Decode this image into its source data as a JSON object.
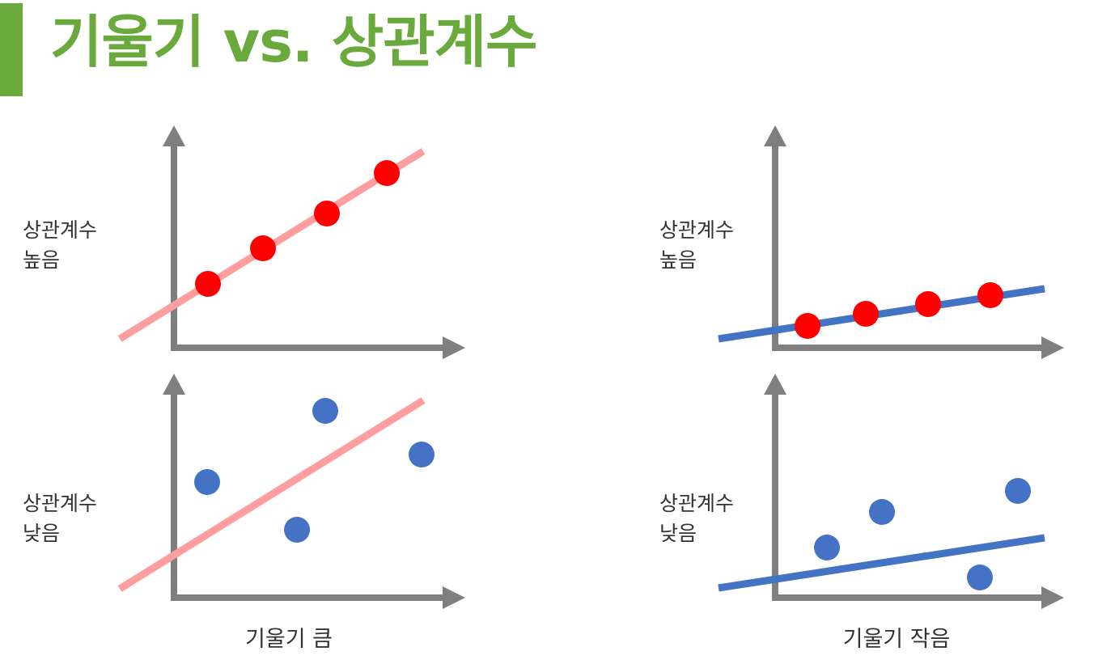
{
  "title": "기울기 vs. 상관계수",
  "colors": {
    "accent_green": "#6aaa3c",
    "axis_gray": "#7f7f7f",
    "red_line": "#ff9e9e",
    "red_point": "#ff0000",
    "blue": "#4472c4"
  },
  "icons": {
    "axis_arrowhead": "triangle"
  },
  "columns": [
    {
      "caption": "기울기 큼"
    },
    {
      "caption": "기울기 작음"
    }
  ],
  "panels": [
    {
      "row_label": [
        "상관계수",
        "높음"
      ],
      "slope": "steep",
      "correlation": "high",
      "line_color": "red_line",
      "point_color": "red_point"
    },
    {
      "row_label": [
        "상관계수",
        "높음"
      ],
      "slope": "shallow",
      "correlation": "high",
      "line_color": "blue",
      "point_color": "red_point"
    },
    {
      "row_label": [
        "상관계수",
        "낮음"
      ],
      "slope": "steep",
      "correlation": "low",
      "line_color": "red_line",
      "point_color": "blue"
    },
    {
      "row_label": [
        "상관계수",
        "낮음"
      ],
      "slope": "shallow",
      "correlation": "low",
      "line_color": "blue",
      "point_color": "blue"
    }
  ]
}
